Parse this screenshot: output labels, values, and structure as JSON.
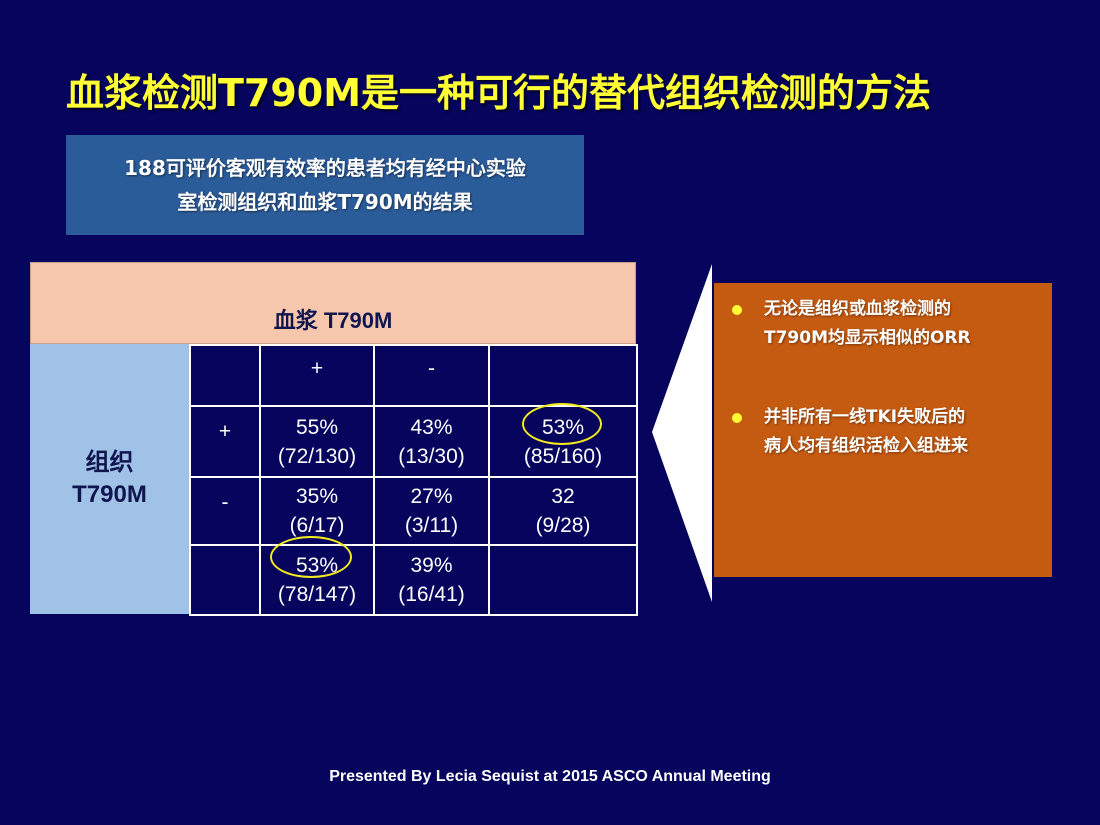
{
  "title": "血浆检测T790M是一种可行的替代组织检测的方法",
  "subtitle": {
    "line1": "188可评价客观有效率的患者均有经中心实验",
    "line2": "室检测组织和血浆T790M的结果"
  },
  "table": {
    "column_group_header": "血浆 T790M",
    "row_group_header_line1": "组织",
    "row_group_header_line2": "T790M",
    "col_headers": [
      "",
      "+",
      "-",
      ""
    ],
    "rows": [
      {
        "sign": "+",
        "cells": [
          [
            "55%",
            "(72/130)"
          ],
          [
            "43%",
            "(13/30)"
          ],
          [
            "53%",
            "(85/160)"
          ]
        ]
      },
      {
        "sign": "-",
        "cells": [
          [
            "35%",
            "(6/17)"
          ],
          [
            "27%",
            "(3/11)"
          ],
          [
            "32",
            "(9/28)"
          ]
        ]
      },
      {
        "sign": "",
        "cells": [
          [
            "53%",
            "(78/147)"
          ],
          [
            "39%",
            "(16/41)"
          ],
          [
            "",
            ""
          ]
        ]
      }
    ]
  },
  "callout": {
    "bullets": [
      "无论是组织或血浆检测的\nT790M均显示相似的ORR",
      "并非所有一线TKI失败后的\n病人均有组织活检入组进来"
    ]
  },
  "footer": "Presented By Lecia Sequist at 2015 ASCO Annual Meeting",
  "colors": {
    "background": "#06045c",
    "title": "#ffff33",
    "subtitle_box": "#2b5c9a",
    "plasma_header": "#f6c7ad",
    "tissue_side": "#a0c2e6",
    "callout_box": "#c55a11",
    "highlight_ellipse": "#f2ea1e"
  }
}
